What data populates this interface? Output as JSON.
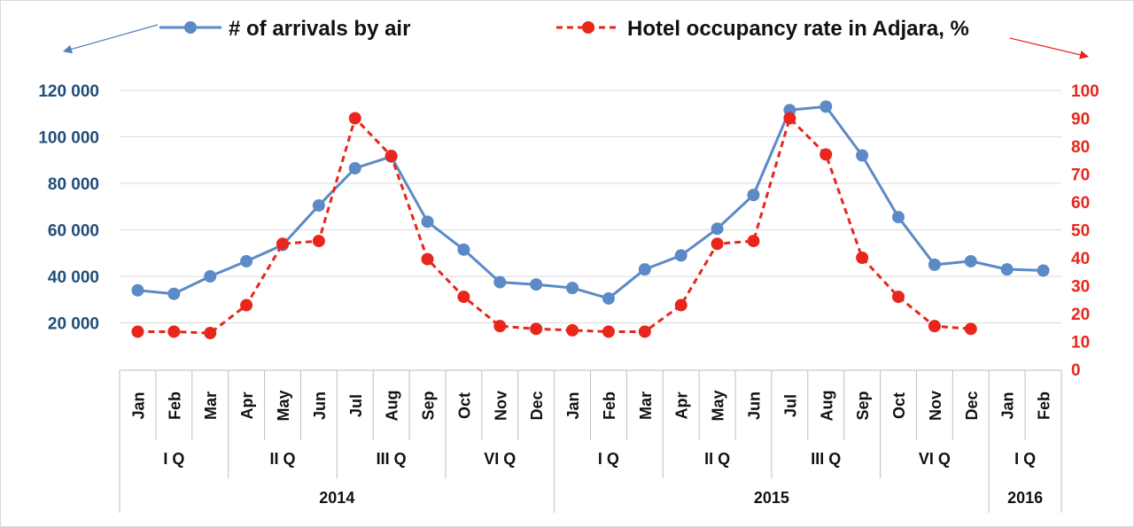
{
  "chart_data": {
    "type": "line",
    "legend_placement": "top",
    "grid": true,
    "categories": [
      "Jan",
      "Feb",
      "Mar",
      "Apr",
      "May",
      "Jun",
      "Jul",
      "Aug",
      "Sep",
      "Oct",
      "Nov",
      "Dec",
      "Jan",
      "Feb",
      "Mar",
      "Apr",
      "May",
      "Jun",
      "Jul",
      "Aug",
      "Sep",
      "Oct",
      "Nov",
      "Dec",
      "Jan",
      "Feb"
    ],
    "quarters": [
      {
        "label": "I Q",
        "span": 3
      },
      {
        "label": "II Q",
        "span": 3
      },
      {
        "label": "III Q",
        "span": 3
      },
      {
        "label": "VI Q",
        "span": 3
      },
      {
        "label": "I Q",
        "span": 3
      },
      {
        "label": "II Q",
        "span": 3
      },
      {
        "label": "III Q",
        "span": 3
      },
      {
        "label": "VI Q",
        "span": 3
      },
      {
        "label": "I Q",
        "span": 2
      }
    ],
    "years": [
      {
        "label": "2014",
        "span": 12
      },
      {
        "label": "2015",
        "span": 12
      },
      {
        "label": "2016",
        "span": 2
      }
    ],
    "y_left": {
      "ylim": [
        0,
        130000
      ],
      "ticks": [
        20000,
        40000,
        60000,
        80000,
        100000,
        120000
      ],
      "tick_labels": [
        "20 000",
        "40 000",
        "60 000",
        "80 000",
        "100 000",
        "120 000"
      ],
      "color": "#1f4e79"
    },
    "y_right": {
      "ylim": [
        0,
        100
      ],
      "ticks": [
        0,
        10,
        20,
        30,
        40,
        50,
        60,
        70,
        80,
        90,
        100
      ],
      "tick_labels": [
        "0",
        "10",
        "20",
        "30",
        "40",
        "50",
        "60",
        "70",
        "80",
        "90",
        "100"
      ],
      "color": "#e8261b"
    },
    "series": [
      {
        "name": "# of arrivals by air",
        "axis": "left",
        "color": "#5b8ac6",
        "style": "solid",
        "values": [
          34000,
          32500,
          40000,
          46500,
          53500,
          70500,
          86500,
          91500,
          63500,
          51500,
          37500,
          36500,
          35000,
          30500,
          43000,
          49000,
          60500,
          75000,
          111500,
          113000,
          92000,
          65500,
          45000,
          46500,
          43000,
          42500
        ]
      },
      {
        "name": "Hotel occupancy rate in Adjara, %",
        "axis": "right",
        "color": "#e8261b",
        "style": "dashed",
        "values": [
          13.5,
          13.5,
          13,
          23,
          45,
          46,
          90,
          76.5,
          39.5,
          26,
          15.5,
          14.5,
          14,
          13.5,
          13.5,
          23,
          45,
          46,
          90,
          77,
          40,
          26,
          15.5,
          14.5,
          null,
          null
        ]
      }
    ]
  }
}
